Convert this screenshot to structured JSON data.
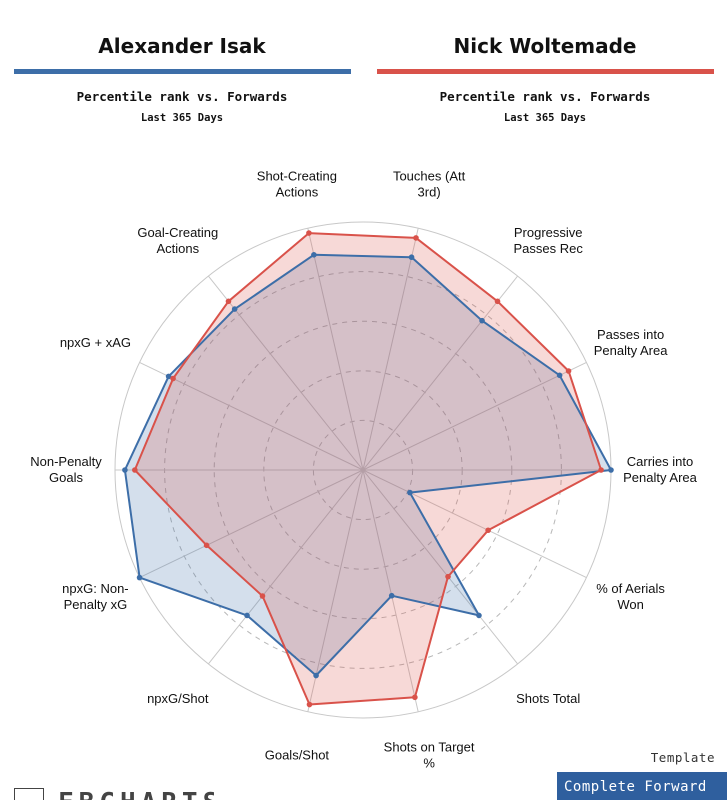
{
  "players": [
    {
      "name": "Alexander Isak",
      "color": "#3d6ea8",
      "subtitle": "Percentile rank vs. Forwards",
      "period": "Last 365 Days"
    },
    {
      "name": "Nick Woltemade",
      "color": "#d9524a",
      "subtitle": "Percentile rank vs. Forwards",
      "period": "Last 365 Days"
    }
  ],
  "template": {
    "label": "Template",
    "value": "Complete Forward"
  },
  "logo": {
    "text": "FBCHARTS"
  },
  "chart_data": {
    "type": "radar",
    "axes": [
      "Touches (Att 3rd)",
      "Progressive Passes Rec",
      "Passes into Penalty Area",
      "Carries into Penalty Area",
      "% of Aerials Won",
      "Shots Total",
      "Shots on Target %",
      "Goals/Shot",
      "npxG/Shot",
      "npxG: Non-Penalty xG",
      "Non-Penalty Goals",
      "npxG + xAG",
      "Goal-Creating Actions",
      "Shot-Creating Actions"
    ],
    "rlim": [
      0,
      100
    ],
    "grid_rings": [
      20,
      40,
      60,
      80
    ],
    "series": [
      {
        "name": "Alexander Isak",
        "color": "#3d6ea8",
        "values": [
          88,
          77,
          88,
          100,
          21,
          75,
          52,
          85,
          75,
          100,
          96,
          87,
          83,
          89
        ]
      },
      {
        "name": "Nick Woltemade",
        "color": "#d9524a",
        "values": [
          96,
          87,
          92,
          96,
          56,
          55,
          94,
          97,
          65,
          70,
          92,
          85,
          87,
          98
        ]
      }
    ]
  }
}
